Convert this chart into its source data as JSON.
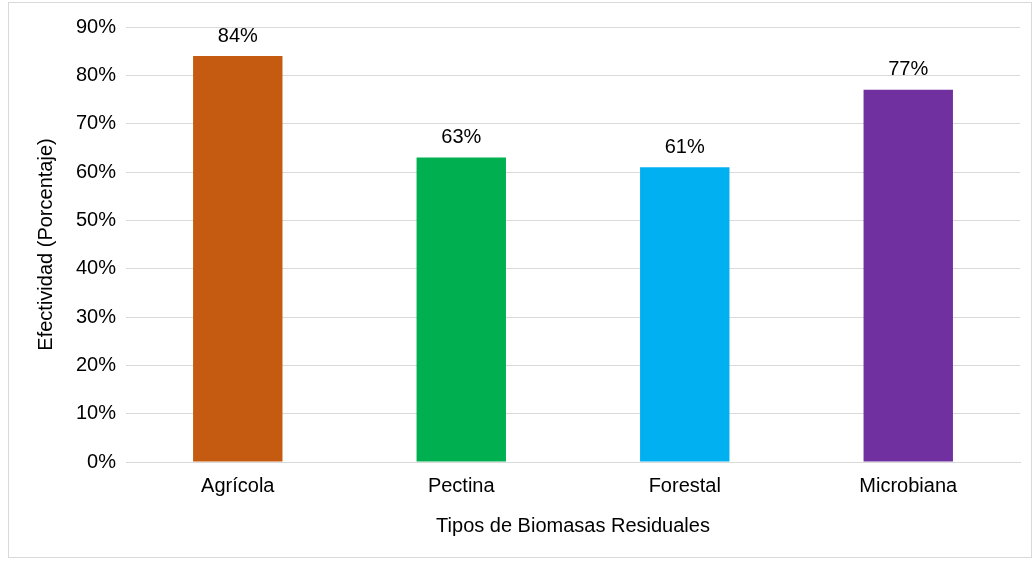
{
  "chart_data": {
    "type": "bar",
    "xlabel": "Tipos de Biomasas Residuales",
    "ylabel": "Efectividad (Porcentaje)",
    "categories": [
      "Agrícola",
      "Pectina",
      "Forestal",
      "Microbiana"
    ],
    "values": [
      84,
      63,
      61,
      77
    ],
    "colors": [
      "#c55a11",
      "#00b050",
      "#00b0f0",
      "#7030a0"
    ],
    "value_labels": [
      "84%",
      "63%",
      "61%",
      "77%"
    ],
    "ylim": [
      0,
      90
    ],
    "yticks": [
      {
        "value": 0,
        "label": "0%"
      },
      {
        "value": 10,
        "label": "10%"
      },
      {
        "value": 20,
        "label": "20%"
      },
      {
        "value": 30,
        "label": "30%"
      },
      {
        "value": 40,
        "label": "40%"
      },
      {
        "value": 50,
        "label": "50%"
      },
      {
        "value": 60,
        "label": "60%"
      },
      {
        "value": 70,
        "label": "70%"
      },
      {
        "value": 80,
        "label": "80%"
      },
      {
        "value": 90,
        "label": "90%"
      }
    ],
    "grid": "y",
    "legend": false
  }
}
